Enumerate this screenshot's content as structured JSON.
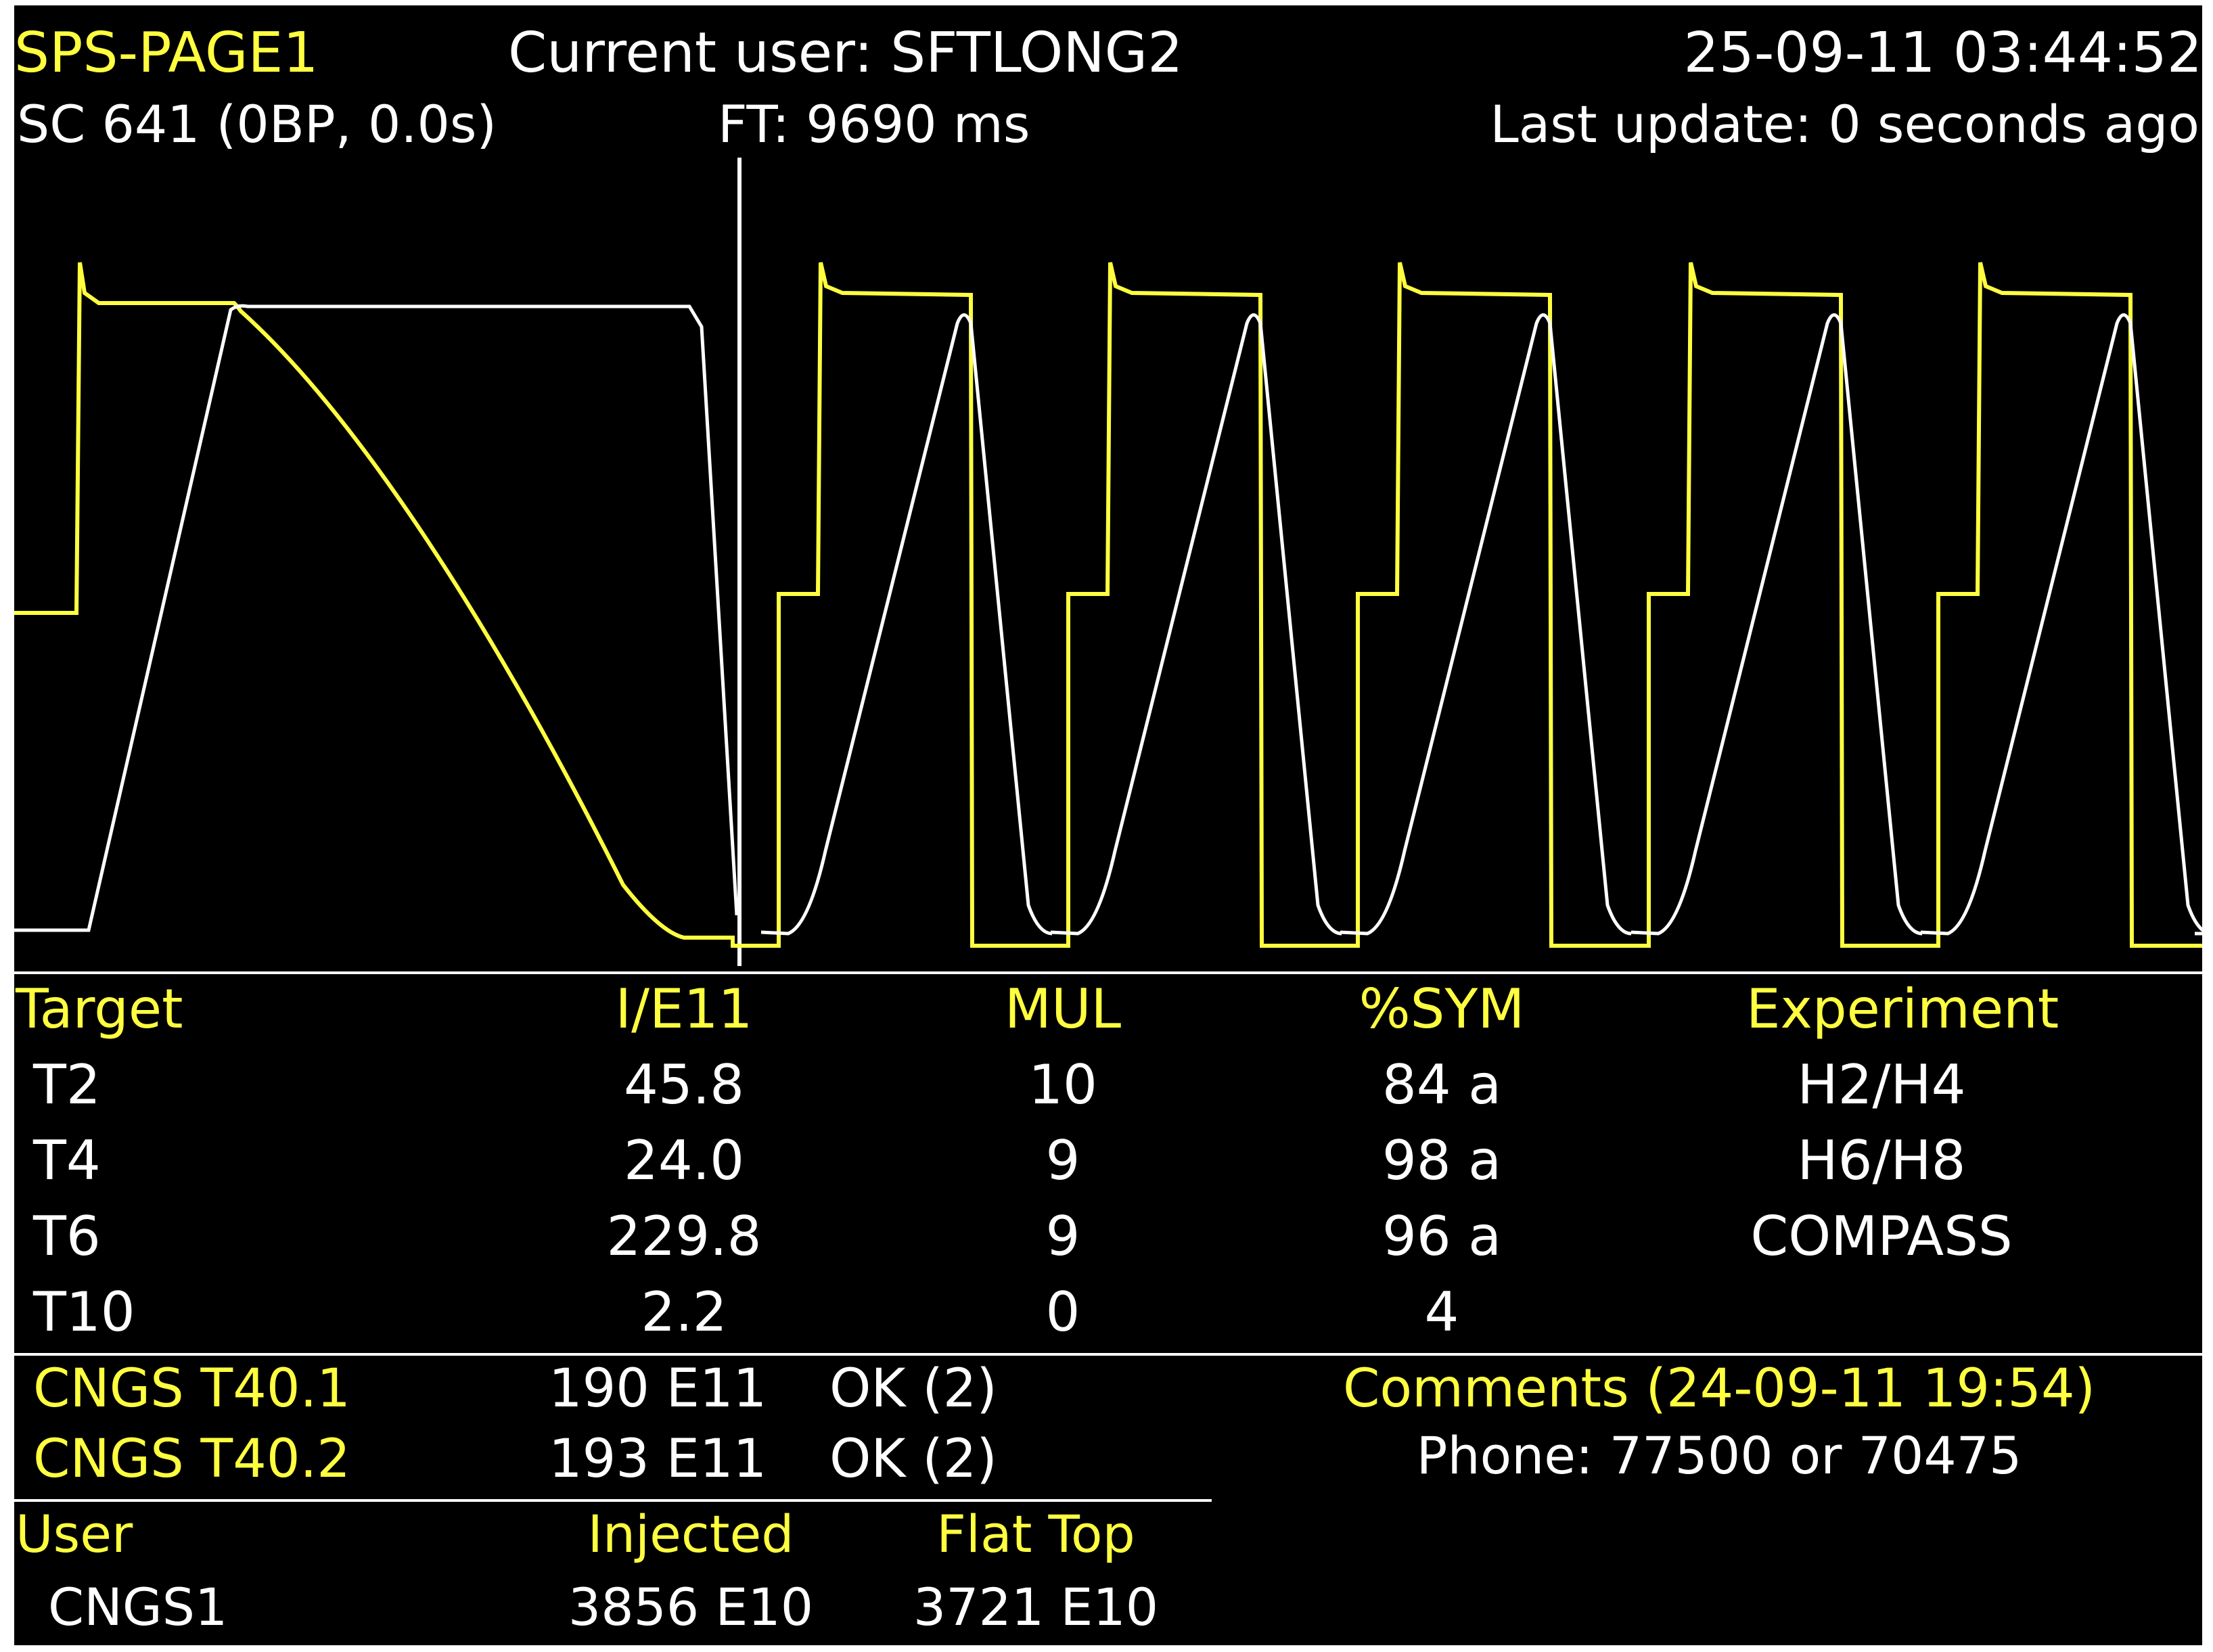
{
  "header": {
    "page_name": "SPS-PAGE1",
    "current_user": "Current user: SFTLONG2",
    "datetime": "25-09-11  03:44:52",
    "supercycle": "SC 641 (0BP, 0.0s)",
    "flat_top": "FT:  9690 ms",
    "last_update": "Last update: 0 seconds ago"
  },
  "colors": {
    "background": "#000000",
    "yellow": "#ffff40",
    "white": "#ffffff"
  },
  "targets_table": {
    "headers": [
      "Target",
      "I/E11",
      "MUL",
      "%SYM",
      "Experiment"
    ],
    "rows": [
      [
        "T2",
        "45.8",
        "10",
        "84 a",
        "H2/H4"
      ],
      [
        "T4",
        "24.0",
        "9",
        "98 a",
        "H6/H8"
      ],
      [
        "T6",
        "229.8",
        "9",
        "96 a",
        "COMPASS"
      ],
      [
        "T10",
        "2.2",
        "0",
        "4",
        ""
      ]
    ]
  },
  "cngs": [
    {
      "name": "CNGS T40.1",
      "intensity": "190 E11",
      "status": "OK (2)"
    },
    {
      "name": "CNGS T40.2",
      "intensity": "193 E11",
      "status": "OK (2)"
    }
  ],
  "comments": {
    "title": "Comments (24-09-11 19:54)",
    "text": "Phone: 77500 or 70475"
  },
  "user_table": {
    "headers": [
      "User",
      "Injected",
      "Flat Top"
    ],
    "row": [
      "CNGS1",
      "3856 E10",
      "3721 E10"
    ]
  }
}
